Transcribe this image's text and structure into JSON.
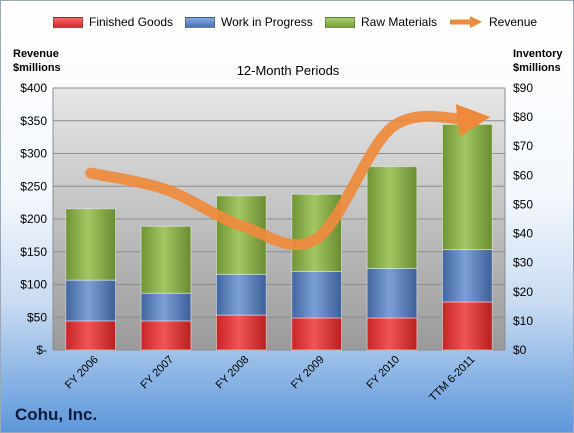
{
  "chart_data": {
    "type": "bar",
    "title": "12-Month Periods",
    "categories": [
      "FY 2006",
      "FY 2007",
      "FY 2008",
      "FY 2009",
      "FY 2010",
      "TTM 6-2011"
    ],
    "series": [
      {
        "name": "Finished Goods",
        "axis": "right",
        "color": "#e13b3b",
        "values": [
          10,
          10,
          12,
          11,
          11,
          16.5
        ]
      },
      {
        "name": "Work in Progress",
        "axis": "right",
        "color": "#5b83c2",
        "values": [
          14,
          9.5,
          14,
          16,
          17,
          18
        ]
      },
      {
        "name": "Raw Materials",
        "axis": "right",
        "color": "#8ab04e",
        "values": [
          24.5,
          23,
          27,
          26.5,
          35,
          43
        ]
      },
      {
        "name": "Revenue",
        "axis": "left",
        "type": "line",
        "color": "#ef8a3c",
        "values": [
          270,
          245,
          190,
          170,
          340,
          352
        ]
      }
    ],
    "left_axis": {
      "label_lines": [
        "Revenue",
        "$millions"
      ],
      "ylim": [
        0,
        400
      ],
      "ticks": [
        "$-",
        "$50",
        "$100",
        "$150",
        "$200",
        "$250",
        "$300",
        "$350",
        "$400"
      ]
    },
    "right_axis": {
      "label_lines": [
        "Inventory",
        "$millions"
      ],
      "ylim": [
        0,
        90
      ],
      "ticks": [
        "$0",
        "$10",
        "$20",
        "$30",
        "$40",
        "$50",
        "$60",
        "$70",
        "$80",
        "$90"
      ]
    },
    "legend_position": "top",
    "grid": true,
    "stacked": true
  },
  "footer": {
    "company": "Cohu, Inc."
  }
}
